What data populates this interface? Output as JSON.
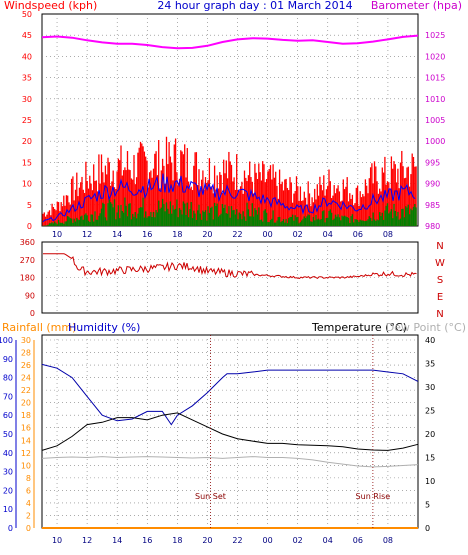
{
  "chart_data": [
    {
      "type": "line",
      "title": "24 hour graph day : 01 March 2014",
      "left_axis_label": "Windspeed (kph)",
      "right_axis_label": "Barometer (hpa)",
      "x_ticks": [
        "10",
        "12",
        "14",
        "16",
        "18",
        "20",
        "22",
        "00",
        "02",
        "04",
        "06",
        "08"
      ],
      "ylim_left": [
        0,
        50
      ],
      "y_ticks_left": [
        0,
        5,
        10,
        15,
        20,
        25,
        30,
        35,
        40,
        45,
        50
      ],
      "ylim_right": [
        980,
        1030
      ],
      "y_ticks_right": [
        980,
        985,
        990,
        995,
        1000,
        1005,
        1010,
        1015,
        1020,
        1025
      ],
      "grid": true,
      "series": [
        {
          "name": "Barometer",
          "color": "#ff00ff",
          "hours": [
            9,
            10,
            11,
            12,
            13,
            14,
            15,
            16,
            17,
            18,
            19,
            20,
            21,
            22,
            23,
            24,
            25,
            26,
            27,
            28,
            29,
            30,
            31,
            32,
            33,
            34
          ],
          "values": [
            1024.5,
            1024.7,
            1024.4,
            1023.8,
            1023.3,
            1023.0,
            1023.0,
            1022.7,
            1022.2,
            1021.9,
            1022.0,
            1022.5,
            1023.4,
            1024.0,
            1024.3,
            1024.2,
            1023.9,
            1023.7,
            1023.8,
            1023.4,
            1023.0,
            1023.1,
            1023.5,
            1024.0,
            1024.6,
            1024.9
          ]
        },
        {
          "name": "Wind gust",
          "color": "#ff0000",
          "hours": [
            9,
            10,
            11,
            12,
            13,
            14,
            15,
            16,
            17,
            18,
            19,
            20,
            21,
            22,
            23,
            24,
            25,
            26,
            27,
            28,
            29,
            30,
            31,
            32,
            33,
            34
          ],
          "values": [
            3,
            5,
            9,
            12,
            14,
            15,
            15,
            16,
            16,
            17,
            15,
            14,
            14,
            14,
            12,
            12,
            10,
            9,
            8,
            11,
            10,
            8,
            12,
            13,
            14,
            15
          ]
        },
        {
          "name": "Wind average",
          "color": "#0000ff",
          "hours": [
            9,
            10,
            11,
            12,
            13,
            14,
            15,
            16,
            17,
            18,
            19,
            20,
            21,
            22,
            23,
            24,
            25,
            26,
            27,
            28,
            29,
            30,
            31,
            32,
            33,
            34
          ],
          "values": [
            1,
            2,
            4,
            6,
            8,
            9,
            9,
            9,
            10,
            10,
            9,
            8,
            8,
            8,
            7,
            6,
            5,
            4,
            4,
            6,
            5,
            4,
            6,
            7,
            8,
            8
          ]
        },
        {
          "name": "Wind low",
          "color": "#008000",
          "hours": [
            9,
            10,
            11,
            12,
            13,
            14,
            15,
            16,
            17,
            18,
            19,
            20,
            21,
            22,
            23,
            24,
            25,
            26,
            27,
            28,
            29,
            30,
            31,
            32,
            33,
            34
          ],
          "values": [
            0,
            1,
            2,
            3,
            4,
            5,
            5,
            5,
            5,
            5,
            5,
            4,
            4,
            4,
            4,
            3,
            2,
            2,
            2,
            3,
            2,
            2,
            3,
            4,
            4,
            4
          ]
        }
      ]
    },
    {
      "type": "line",
      "direction_labels": [
        "N",
        "W",
        "S",
        "E",
        "N"
      ],
      "x_ticks": [
        "10",
        "12",
        "14",
        "16",
        "18",
        "20",
        "22",
        "00",
        "02",
        "04",
        "06",
        "08"
      ],
      "ylim": [
        0,
        360
      ],
      "y_ticks": [
        0,
        90,
        180,
        270,
        360
      ],
      "grid": true,
      "series": [
        {
          "name": "Wind direction",
          "color": "#cc0000",
          "hours": [
            9,
            10,
            10.5,
            11,
            11.5,
            12,
            13,
            14,
            15,
            16,
            17,
            18,
            19,
            20,
            21,
            22,
            23,
            24,
            25,
            26,
            27,
            28,
            29,
            30,
            31,
            32,
            33,
            34
          ],
          "values": [
            300,
            300,
            300,
            275,
            220,
            210,
            210,
            215,
            220,
            225,
            230,
            240,
            235,
            210,
            205,
            200,
            195,
            190,
            185,
            180,
            180,
            180,
            180,
            185,
            195,
            200,
            195,
            195
          ]
        }
      ]
    },
    {
      "type": "line",
      "rainfall_label": "Rainfall (mm)",
      "humidity_label": "Humidity (%)",
      "temperature_label": "Temperature (°C)",
      "dewpoint_label": "Dew Point (°C)",
      "x_ticks": [
        "10",
        "12",
        "14",
        "16",
        "18",
        "20",
        "22",
        "00",
        "02",
        "04",
        "06",
        "08"
      ],
      "ylim_rain": [
        0,
        30
      ],
      "y_ticks_rain": [
        0,
        2,
        4,
        6,
        8,
        10,
        12,
        14,
        16,
        18,
        20,
        22,
        24,
        26,
        28,
        30
      ],
      "ylim_humidity": [
        0,
        100
      ],
      "y_ticks_humidity": [
        0,
        10,
        20,
        30,
        40,
        50,
        60,
        70,
        80,
        90,
        100
      ],
      "ylim_temp": [
        0,
        40
      ],
      "y_ticks_temp": [
        0,
        5,
        10,
        15,
        20,
        25,
        30,
        35,
        40
      ],
      "annotations": [
        {
          "text": "Sun Set",
          "hour": 20.2
        },
        {
          "text": "Sun Rise",
          "hour": 31.0
        }
      ],
      "grid": true,
      "series": [
        {
          "name": "Humidity",
          "color": "#0000aa",
          "axis": "humidity",
          "hours": [
            9,
            10,
            11,
            12,
            13,
            14,
            15,
            16,
            17,
            17.6,
            18,
            19,
            20,
            21,
            21.3,
            22,
            23,
            24,
            25,
            26,
            27,
            28,
            29,
            30,
            31,
            32,
            33,
            34
          ],
          "values": [
            87,
            85,
            80,
            70,
            60,
            57,
            58,
            62,
            62,
            55,
            60,
            65,
            72,
            80,
            82,
            82,
            83,
            84,
            84,
            84,
            84,
            84,
            84,
            84,
            84,
            83,
            82,
            78
          ]
        },
        {
          "name": "Temperature",
          "color": "#000000",
          "axis": "temp",
          "hours": [
            9,
            10,
            11,
            12,
            13,
            14,
            15,
            16,
            17,
            18,
            19,
            20,
            21,
            22,
            23,
            24,
            25,
            26,
            27,
            28,
            29,
            30,
            31,
            32,
            33,
            34
          ],
          "values": [
            16.5,
            17.5,
            19.5,
            22,
            22.5,
            23.5,
            23.5,
            23,
            24,
            24.5,
            23,
            21.5,
            20,
            19,
            18.5,
            18,
            18,
            17.7,
            17.6,
            17.5,
            17.3,
            16.8,
            16.6,
            16.5,
            17,
            17.8
          ]
        },
        {
          "name": "Dew Point",
          "color": "#b0b0b0",
          "axis": "temp",
          "hours": [
            9,
            10,
            11,
            12,
            13,
            14,
            15,
            16,
            17,
            18,
            19,
            20,
            21,
            22,
            23,
            24,
            25,
            26,
            27,
            28,
            29,
            30,
            31,
            32,
            33,
            34
          ],
          "values": [
            14.8,
            15,
            15.1,
            15,
            15.2,
            15,
            15.1,
            15.2,
            15.1,
            15,
            14.9,
            15,
            14.8,
            15,
            15.2,
            15,
            15,
            14.8,
            14.5,
            14,
            13.6,
            13.2,
            13,
            13.1,
            13.3,
            13.5
          ]
        },
        {
          "name": "Rainfall",
          "color": "#ff8c00",
          "axis": "rain",
          "hours": [
            9,
            34
          ],
          "values": [
            0,
            0
          ]
        }
      ]
    }
  ]
}
